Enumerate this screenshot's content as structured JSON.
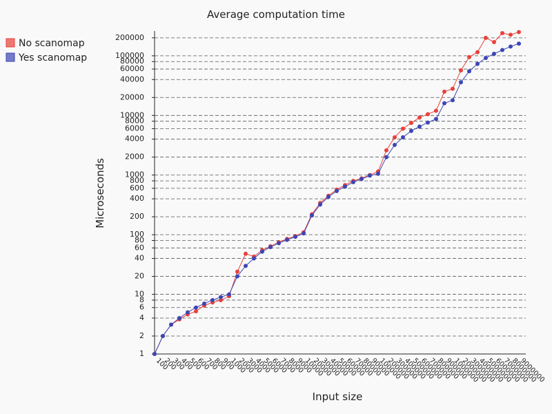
{
  "chart_data": {
    "type": "line",
    "title": "Average computation time",
    "x_label": "Input size",
    "y_label": "Microseconds",
    "log_scale": true,
    "grid": true,
    "legend": "top-left",
    "categories": [
      "100",
      "200",
      "300",
      "400",
      "500",
      "600",
      "700",
      "800",
      "900",
      "1000",
      "2000",
      "3000",
      "4000",
      "5000",
      "6000",
      "7000",
      "8000",
      "9000",
      "10000",
      "20000",
      "30000",
      "40000",
      "50000",
      "60000",
      "70000",
      "80000",
      "90000",
      "100000",
      "200000",
      "300000",
      "400000",
      "500000",
      "600000",
      "700000",
      "800000",
      "900000",
      "1000000",
      "2000000",
      "3000000",
      "4000000",
      "5000000",
      "6000000",
      "7000000",
      "8000000",
      "9000000"
    ],
    "series": [
      {
        "name": "No scanomap",
        "color": "#e8413a",
        "values": [
          1,
          2,
          3.1,
          3.8,
          4.6,
          5.2,
          6.5,
          7.3,
          8,
          9.3,
          24,
          48,
          43,
          55,
          64,
          75,
          85,
          95,
          110,
          220,
          340,
          450,
          570,
          680,
          800,
          880,
          1000,
          1150,
          2600,
          4300,
          6000,
          7500,
          9200,
          10500,
          12000,
          25000,
          28000,
          57000,
          95000,
          115000,
          200000,
          170000,
          240000,
          225000,
          250000
        ]
      },
      {
        "name": "Yes scanomap",
        "color": "#3c46b5",
        "values": [
          1,
          2,
          3.1,
          4,
          5,
          6,
          7,
          8,
          9,
          10,
          20,
          30,
          40,
          52,
          62,
          72,
          82,
          92,
          105,
          210,
          320,
          430,
          540,
          640,
          760,
          860,
          980,
          1050,
          2000,
          3200,
          4300,
          5500,
          6500,
          7600,
          8700,
          16000,
          18000,
          36000,
          55000,
          73000,
          92000,
          108000,
          125000,
          143000,
          160000
        ]
      }
    ],
    "ylim": [
      1,
      260000
    ],
    "yticks": [
      1,
      2,
      4,
      6,
      8,
      10,
      20,
      40,
      60,
      80,
      100,
      200,
      400,
      600,
      800,
      1000,
      2000,
      4000,
      6000,
      8000,
      10000,
      20000,
      40000,
      60000,
      80000,
      100000,
      200000
    ]
  }
}
